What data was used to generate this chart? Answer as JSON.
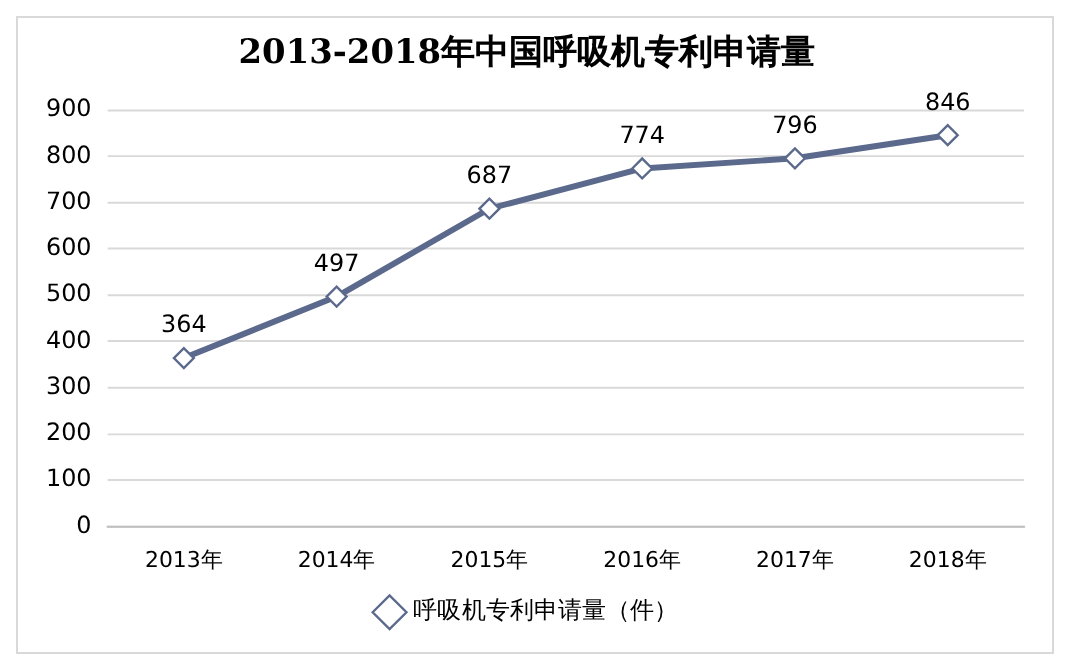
{
  "chart_data": {
    "type": "line",
    "title": "2013-2018年中国呼吸机专利申请量",
    "categories": [
      "2013年",
      "2014年",
      "2015年",
      "2016年",
      "2017年",
      "2018年"
    ],
    "series": [
      {
        "name": "呼吸机专利申请量（件）",
        "color": "#5b6a8c",
        "values": [
          364,
          497,
          687,
          774,
          796,
          846
        ]
      }
    ],
    "ylim": [
      0,
      900
    ],
    "yticks": [
      0,
      100,
      200,
      300,
      400,
      500,
      600,
      700,
      800,
      900
    ],
    "grid": "y",
    "legend": "bottom",
    "marker": "diamond",
    "line_style": "solid",
    "data_labels": true
  }
}
